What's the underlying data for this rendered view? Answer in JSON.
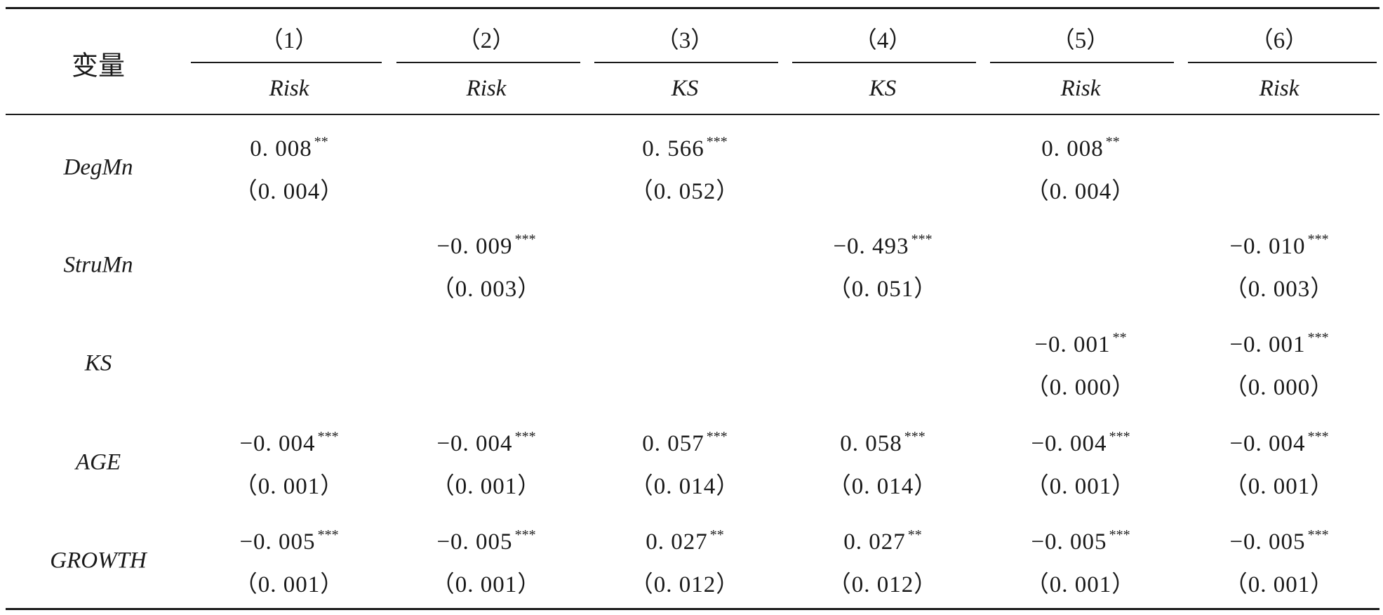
{
  "header": {
    "var_label": "变量",
    "columns": [
      {
        "num": "（1）",
        "dep": "Risk"
      },
      {
        "num": "（2）",
        "dep": "Risk"
      },
      {
        "num": "（3）",
        "dep": "KS"
      },
      {
        "num": "（4）",
        "dep": "KS"
      },
      {
        "num": "（5）",
        "dep": "Risk"
      },
      {
        "num": "（6）",
        "dep": "Risk"
      }
    ]
  },
  "rows": [
    {
      "label": "DegMn",
      "cells": [
        {
          "coef": "0. 008",
          "stars": "**",
          "se": "（0. 004）"
        },
        {
          "coef": "",
          "stars": "",
          "se": ""
        },
        {
          "coef": "0. 566",
          "stars": "***",
          "se": "（0. 052）"
        },
        {
          "coef": "",
          "stars": "",
          "se": ""
        },
        {
          "coef": "0. 008",
          "stars": "**",
          "se": "（0. 004）"
        },
        {
          "coef": "",
          "stars": "",
          "se": ""
        }
      ]
    },
    {
      "label": "StruMn",
      "cells": [
        {
          "coef": "",
          "stars": "",
          "se": ""
        },
        {
          "coef": "−0. 009",
          "stars": "***",
          "se": "（0. 003）"
        },
        {
          "coef": "",
          "stars": "",
          "se": ""
        },
        {
          "coef": "−0. 493",
          "stars": "***",
          "se": "（0. 051）"
        },
        {
          "coef": "",
          "stars": "",
          "se": ""
        },
        {
          "coef": "−0. 010",
          "stars": "***",
          "se": "（0. 003）"
        }
      ]
    },
    {
      "label": "KS",
      "cells": [
        {
          "coef": "",
          "stars": "",
          "se": ""
        },
        {
          "coef": "",
          "stars": "",
          "se": ""
        },
        {
          "coef": "",
          "stars": "",
          "se": ""
        },
        {
          "coef": "",
          "stars": "",
          "se": ""
        },
        {
          "coef": "−0. 001",
          "stars": "**",
          "se": "（0. 000）"
        },
        {
          "coef": "−0. 001",
          "stars": "***",
          "se": "（0. 000）"
        }
      ]
    },
    {
      "label": "AGE",
      "cells": [
        {
          "coef": "−0. 004",
          "stars": "***",
          "se": "（0. 001）"
        },
        {
          "coef": "−0. 004",
          "stars": "***",
          "se": "（0. 001）"
        },
        {
          "coef": "0. 057",
          "stars": "***",
          "se": "（0. 014）"
        },
        {
          "coef": "0. 058",
          "stars": "***",
          "se": "（0. 014）"
        },
        {
          "coef": "−0. 004",
          "stars": "***",
          "se": "（0. 001）"
        },
        {
          "coef": "−0. 004",
          "stars": "***",
          "se": "（0. 001）"
        }
      ]
    },
    {
      "label": "GROWTH",
      "cells": [
        {
          "coef": "−0. 005",
          "stars": "***",
          "se": "（0. 001）"
        },
        {
          "coef": "−0. 005",
          "stars": "***",
          "se": "（0. 001）"
        },
        {
          "coef": "0. 027",
          "stars": "**",
          "se": "（0. 012）"
        },
        {
          "coef": "0. 027",
          "stars": "**",
          "se": "（0. 012）"
        },
        {
          "coef": "−0. 005",
          "stars": "***",
          "se": "（0. 001）"
        },
        {
          "coef": "−0. 005",
          "stars": "***",
          "se": "（0. 001）"
        }
      ]
    }
  ]
}
